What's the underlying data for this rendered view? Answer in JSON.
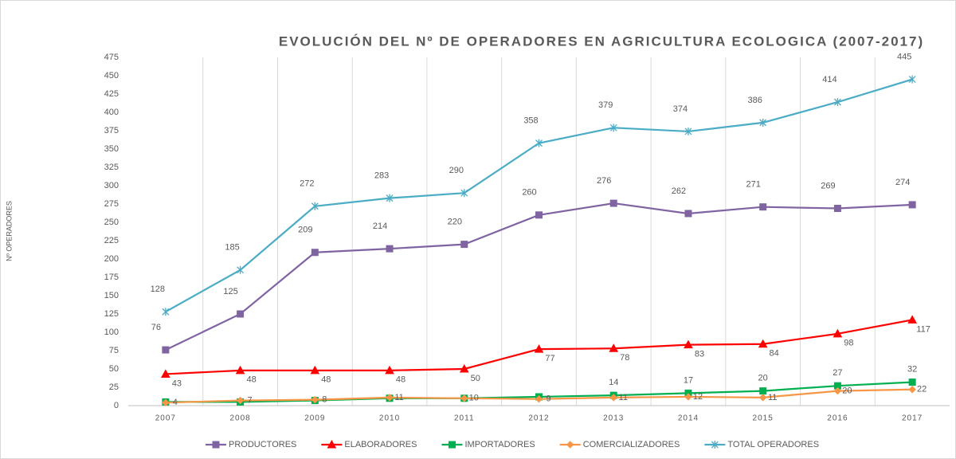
{
  "chart_data": {
    "type": "line",
    "title": "EVOLUCIÓN DEL Nº DE OPERADORES EN AGRICULTURA ECOLOGICA (2007-2017)",
    "y_label": "Nº OPERADORES",
    "categories": [
      "2007",
      "2008",
      "2009",
      "2010",
      "2011",
      "2012",
      "2013",
      "2014",
      "2015",
      "2016",
      "2017"
    ],
    "ylim": [
      0,
      475
    ],
    "yticks": [
      0,
      25,
      50,
      75,
      100,
      125,
      150,
      175,
      200,
      225,
      250,
      275,
      300,
      325,
      350,
      375,
      400,
      425,
      450,
      475
    ],
    "legend": "bottom",
    "series": [
      {
        "name": "PRODUCTORES",
        "color": "#8064a2",
        "marker": "square",
        "values": [
          76,
          125,
          209,
          214,
          220,
          260,
          276,
          262,
          271,
          269,
          274
        ]
      },
      {
        "name": "ELABORADORES",
        "color": "#ff0000",
        "marker": "triangle",
        "values": [
          43,
          48,
          48,
          48,
          50,
          77,
          78,
          83,
          84,
          98,
          117
        ]
      },
      {
        "name": "IMPORTADORES",
        "color": "#00b050",
        "marker": "square",
        "values": [
          5,
          5,
          7,
          10,
          10,
          12,
          14,
          17,
          20,
          27,
          32
        ],
        "value_labels": [
          null,
          null,
          null,
          null,
          null,
          null,
          "14",
          "17",
          "20",
          "27",
          "32"
        ]
      },
      {
        "name": "COMERCIALIZADORES",
        "color": "#f79646",
        "marker": "diamond",
        "values": [
          4,
          7,
          8,
          11,
          10,
          9,
          11,
          12,
          11,
          20,
          22
        ]
      },
      {
        "name": "TOTAL OPERADORES",
        "color": "#4bacc6",
        "marker": "star",
        "values": [
          128,
          185,
          272,
          283,
          290,
          358,
          379,
          374,
          386,
          414,
          445
        ]
      }
    ]
  }
}
